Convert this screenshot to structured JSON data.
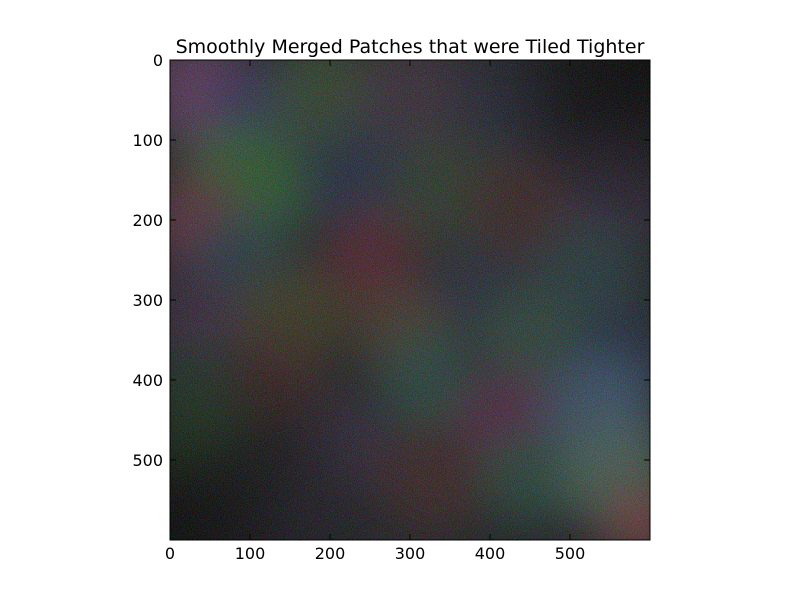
{
  "chart_data": {
    "type": "heatmap",
    "title": "Smoothly Merged Patches that were Tiled Tighter",
    "xlabel": "",
    "ylabel": "",
    "xlim": [
      0,
      600
    ],
    "ylim": [
      600,
      0
    ],
    "y_inverted": true,
    "grid": false,
    "x_ticks": [
      0,
      100,
      200,
      300,
      400,
      500
    ],
    "x_tick_labels": [
      "0",
      "100",
      "200",
      "300",
      "400",
      "500"
    ],
    "y_ticks": [
      0,
      100,
      200,
      300,
      400,
      500
    ],
    "y_tick_labels": [
      "0",
      "100",
      "200",
      "300",
      "400",
      "500"
    ],
    "image_description": "RGB noise image with soft blended color patches",
    "patches": [
      {
        "x": 40,
        "y": 40,
        "r": 70,
        "color": "#7a4a7a"
      },
      {
        "x": 110,
        "y": 60,
        "r": 60,
        "color": "#3a3a70"
      },
      {
        "x": 190,
        "y": 40,
        "r": 70,
        "color": "#3e5a3a"
      },
      {
        "x": 300,
        "y": 40,
        "r": 70,
        "color": "#4a3a4a"
      },
      {
        "x": 420,
        "y": 60,
        "r": 70,
        "color": "#2a3040"
      },
      {
        "x": 540,
        "y": 40,
        "r": 80,
        "color": "#1a1a20"
      },
      {
        "x": 90,
        "y": 160,
        "r": 80,
        "color": "#3a7a3a"
      },
      {
        "x": 30,
        "y": 200,
        "r": 60,
        "color": "#7a3a50"
      },
      {
        "x": 230,
        "y": 150,
        "r": 70,
        "color": "#2e3a55"
      },
      {
        "x": 340,
        "y": 160,
        "r": 70,
        "color": "#3a4a38"
      },
      {
        "x": 440,
        "y": 190,
        "r": 70,
        "color": "#4a2e2e"
      },
      {
        "x": 560,
        "y": 160,
        "r": 70,
        "color": "#3a2e45"
      },
      {
        "x": 90,
        "y": 260,
        "r": 70,
        "color": "#2e4a5a"
      },
      {
        "x": 250,
        "y": 250,
        "r": 60,
        "color": "#6a2a3a"
      },
      {
        "x": 380,
        "y": 300,
        "r": 70,
        "color": "#2e3a4a"
      },
      {
        "x": 520,
        "y": 270,
        "r": 70,
        "color": "#2e4a50"
      },
      {
        "x": 40,
        "y": 330,
        "r": 60,
        "color": "#4a2e50"
      },
      {
        "x": 150,
        "y": 320,
        "r": 70,
        "color": "#4a4a2a"
      },
      {
        "x": 290,
        "y": 340,
        "r": 60,
        "color": "#5a4a3a"
      },
      {
        "x": 450,
        "y": 350,
        "r": 60,
        "color": "#3a5a4a"
      },
      {
        "x": 560,
        "y": 370,
        "r": 60,
        "color": "#2a3a55"
      },
      {
        "x": 40,
        "y": 420,
        "r": 70,
        "color": "#2a4a3a"
      },
      {
        "x": 130,
        "y": 400,
        "r": 60,
        "color": "#4a2a2a"
      },
      {
        "x": 320,
        "y": 400,
        "r": 60,
        "color": "#2e5a50"
      },
      {
        "x": 420,
        "y": 450,
        "r": 60,
        "color": "#6a2e5a"
      },
      {
        "x": 540,
        "y": 440,
        "r": 70,
        "color": "#4a6a8a"
      },
      {
        "x": 20,
        "y": 470,
        "r": 50,
        "color": "#2e5a2e"
      },
      {
        "x": 230,
        "y": 480,
        "r": 60,
        "color": "#3a2e45"
      },
      {
        "x": 330,
        "y": 520,
        "r": 70,
        "color": "#4a2e2e"
      },
      {
        "x": 450,
        "y": 520,
        "r": 60,
        "color": "#2e5a4a"
      },
      {
        "x": 560,
        "y": 520,
        "r": 70,
        "color": "#5a7a6a"
      },
      {
        "x": 590,
        "y": 580,
        "r": 50,
        "color": "#8a4a4a"
      },
      {
        "x": 160,
        "y": 570,
        "r": 60,
        "color": "#2e2a3a"
      }
    ]
  }
}
